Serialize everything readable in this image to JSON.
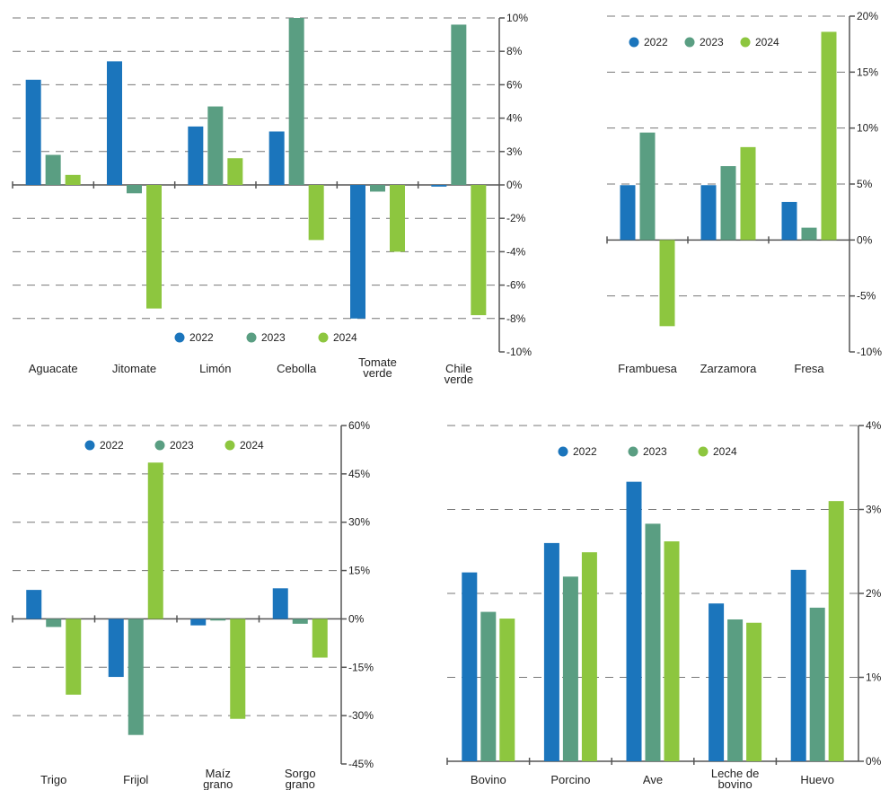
{
  "colors": {
    "2022": "#1b75bc",
    "2023": "#5a9e82",
    "2024": "#8dc63f",
    "axis": "#555555",
    "grid": "#777777"
  },
  "chart_data": [
    {
      "type": "bar",
      "categories": [
        "Aguacate",
        "Jitomate",
        "Limón",
        "Cebolla",
        "Tomate verde",
        "Chile verde"
      ],
      "series": [
        {
          "name": "2022",
          "values": [
            6.3,
            7.4,
            3.5,
            3.2,
            -8.0,
            -0.1
          ]
        },
        {
          "name": "2023",
          "values": [
            1.8,
            -0.5,
            4.7,
            10.0,
            -0.4,
            9.6
          ]
        },
        {
          "name": "2024",
          "values": [
            0.6,
            -7.4,
            1.6,
            -3.3,
            -4.0,
            -7.8
          ]
        }
      ],
      "ylim": [
        -10,
        10
      ],
      "yticks": [
        "10%",
        "8%",
        "6%",
        "4%",
        "3%",
        "0%",
        "-2%",
        "-4%",
        "-6%",
        "-8%",
        "-10%"
      ],
      "legend": [
        "2022",
        "2023",
        "2024"
      ],
      "legend_position": "bottom-right"
    },
    {
      "type": "bar",
      "categories": [
        "Frambuesa",
        "Zarzamora",
        "Fresa"
      ],
      "series": [
        {
          "name": "2022",
          "values": [
            4.9,
            4.9,
            3.4
          ]
        },
        {
          "name": "2023",
          "values": [
            9.6,
            6.6,
            1.1
          ]
        },
        {
          "name": "2024",
          "values": [
            -7.7,
            8.3,
            18.6
          ]
        }
      ],
      "ylim": [
        -10,
        20
      ],
      "yticks": [
        "20%",
        "15%",
        "10%",
        "5%",
        "0%",
        "-5%",
        "-10%"
      ],
      "legend": [
        "2022",
        "2023",
        "2024"
      ],
      "legend_position": "top-left"
    },
    {
      "type": "bar",
      "categories": [
        "Trigo",
        "Frijol",
        "Maíz grano",
        "Sorgo grano"
      ],
      "series": [
        {
          "name": "2022",
          "values": [
            9,
            -18,
            -2,
            9.5
          ]
        },
        {
          "name": "2023",
          "values": [
            -2.5,
            -36,
            -0.5,
            -1.5
          ]
        },
        {
          "name": "2024",
          "values": [
            -23.5,
            48.5,
            -31,
            -12
          ]
        }
      ],
      "ylim": [
        -45,
        60
      ],
      "yticks": [
        "60%",
        "45%",
        "30%",
        "15%",
        "0%",
        "-15%",
        "-30%",
        "-45%"
      ],
      "legend": [
        "2022",
        "2023",
        "2024"
      ],
      "legend_position": "top"
    },
    {
      "type": "bar",
      "categories": [
        "Bovino",
        "Porcino",
        "Ave",
        "Leche de bovino",
        "Huevo"
      ],
      "series": [
        {
          "name": "2022",
          "values": [
            2.25,
            2.6,
            3.33,
            1.88,
            2.28
          ]
        },
        {
          "name": "2023",
          "values": [
            1.78,
            2.2,
            2.83,
            1.69,
            1.83
          ]
        },
        {
          "name": "2024",
          "values": [
            1.7,
            2.49,
            2.62,
            1.65,
            3.1
          ]
        }
      ],
      "ylim": [
        0,
        4
      ],
      "yticks": [
        "4%",
        "3%",
        "2%",
        "1%",
        "0%"
      ],
      "legend": [
        "2022",
        "2023",
        "2024"
      ],
      "legend_position": "top"
    }
  ]
}
